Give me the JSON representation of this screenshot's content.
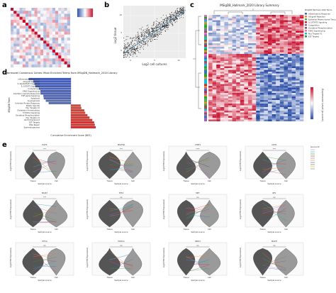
{
  "panels": {
    "a": "a",
    "b": "b",
    "c": "c",
    "d": "d",
    "e": "e"
  },
  "panel_b": {
    "xlabel": "Log2 cell cultures",
    "ylabel": "Log2 tissue",
    "xticks": [
      "0",
      "5",
      "10"
    ],
    "yticks": [
      "0",
      "5",
      "10"
    ]
  },
  "panel_c": {
    "title": "MSigDB_Hallmark_2020 Library Summary",
    "legend_title": "MSigDB Hallmark 2020 Terms",
    "legend_items": [
      {
        "label": "Inflammatory Response",
        "color": "#3b6fb6"
      },
      {
        "label": "Allograft Rejection",
        "color": "#e58a2e"
      },
      {
        "label": "Epithelial Mesenchymal Trans.",
        "color": "#4daf4a"
      },
      {
        "label": "IL-2/STAT5 Signaling",
        "color": "#d62728"
      },
      {
        "label": "Coagulation",
        "color": "#9467bd"
      },
      {
        "label": "Oxidative Phosphorylation",
        "color": "#8c564b"
      },
      {
        "label": "KRAS Signaling Up",
        "color": "#e377c2"
      },
      {
        "label": "Myc Targets V1",
        "color": "#17becf"
      },
      {
        "label": "E2F Targets",
        "color": "#2ca02c"
      }
    ],
    "side_label": "Expression Level (z-score)"
  },
  "panel_d": {
    "title": "Intermodel Consensus Genes: Most Enriched Terms from MSigDB_Hallmark_2020 Library",
    "xlabel": "Cumulative Enrichment Score (NES)",
    "ylabel": "MSigDB Term",
    "terms": [
      "Inflammatory Response",
      "Allograft Rejection",
      "IL-6/JAK/STAT3 Signaling",
      "IL-2/STAT5 Signaling",
      "Complement",
      "KRAS Signaling Up",
      "Interferon Gamma Response",
      "TNF-alpha Signaling",
      "Apoptosis",
      "Angiogenesis",
      "Unfolded Protein Response",
      "Mitotic Spindle",
      "Myc Targets V2",
      "Cholesterol Homeostasis",
      "mTORC1 Signaling",
      "Oxidative Phosphorylation",
      "Myc Targets V1",
      "G2-M Checkpoint",
      "E2F Targets",
      "DNA Repair",
      "Spermatogenesis"
    ]
  },
  "panel_e": {
    "xlabel": "Sample source",
    "ylabel": "Log2(TPM Expression)",
    "categories": [
      "Tissue",
      "Cell"
    ],
    "genes": [
      "EGFR",
      "PDGFRA",
      "VTBF4",
      "CDH1",
      "MKI67",
      "TP53",
      "MET",
      "NF1",
      "HIF1A",
      "PIK3CA",
      "SPRY2",
      "MGMT"
    ],
    "sig": [
      "***",
      "***",
      "****",
      "***",
      "***",
      "ns",
      "ns",
      "ns",
      "ns",
      "ns",
      "ns",
      "ns"
    ],
    "legend_title": "Source ID"
  }
}
